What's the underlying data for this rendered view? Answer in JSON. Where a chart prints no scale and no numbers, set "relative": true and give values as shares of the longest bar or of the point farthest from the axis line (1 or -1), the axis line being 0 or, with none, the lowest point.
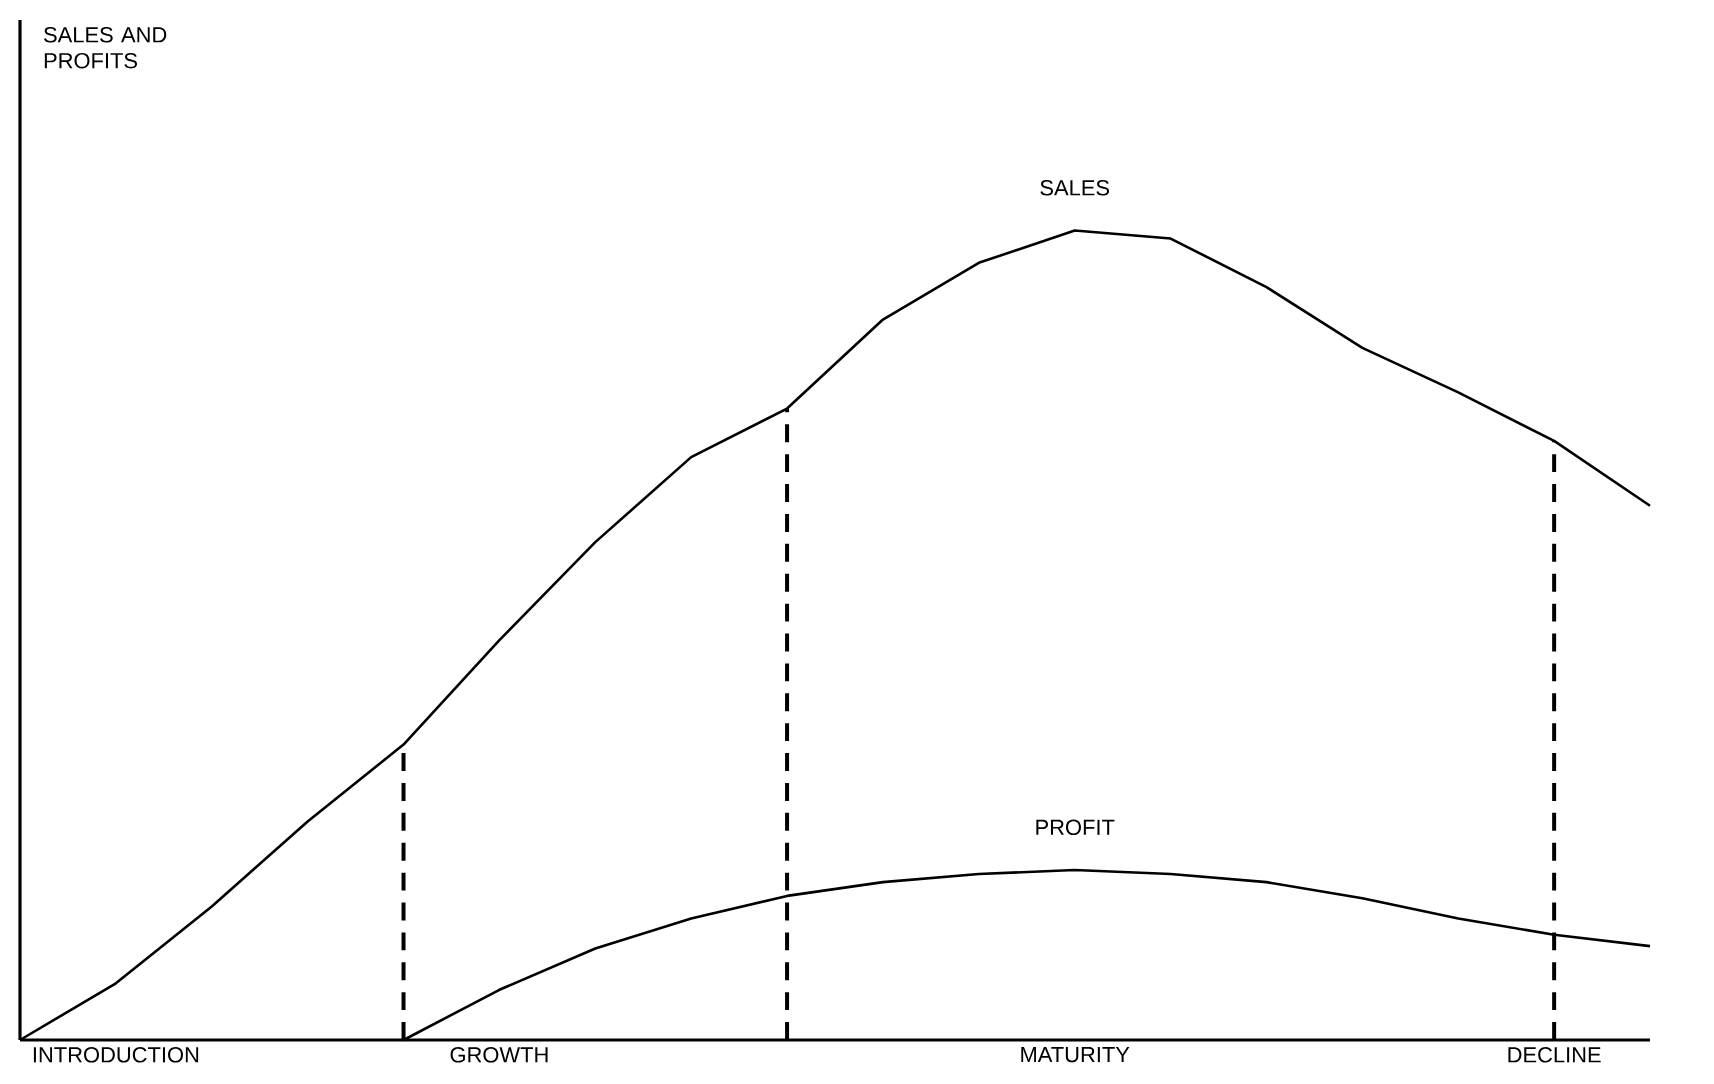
{
  "chart_data": {
    "type": "line",
    "relative": true,
    "annotations": [
      "SALES AND PROFITS"
    ],
    "marker": "none",
    "categories": [
      null,
      "INTRODUCTION",
      null,
      null,
      null,
      "GROWTH",
      null,
      null,
      null,
      null,
      null,
      "MATURITY",
      null,
      null,
      null,
      null,
      "DECLINE",
      null
    ],
    "series": [
      {
        "name": "SALES",
        "color": "#000000",
        "values": [
          0,
          0.07,
          0.165,
          0.27,
          0.365,
          0.494,
          0.615,
          0.72,
          0.78,
          0.89,
          0.96,
          1,
          0.99,
          0.93,
          0.855,
          0.8,
          0.74,
          0.66
        ]
      },
      {
        "name": "PROFIT",
        "color": "#000000",
        "values": [
          null,
          null,
          null,
          null,
          0,
          0.062,
          0.113,
          0.15,
          0.178,
          0.195,
          0.205,
          0.21,
          0.205,
          0.195,
          0.175,
          0.15,
          0.13,
          0.116
        ]
      }
    ]
  }
}
